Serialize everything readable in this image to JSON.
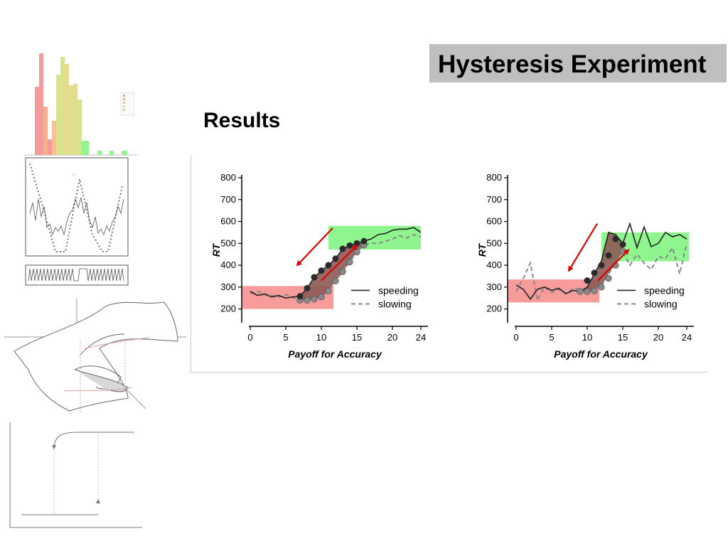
{
  "header": {
    "title": "Hysteresis Experiment",
    "subtitle": "Results"
  },
  "colors": {
    "red_region": "#f79b9b",
    "green_region": "#8ff58f",
    "hysteresis_fill": "#8c5a55",
    "arrow": "#dd0000",
    "speeding": "#222222",
    "slowing": "#888888"
  },
  "chart_data": [
    {
      "type": "line",
      "xlabel": "Payoff for Accuracy",
      "ylabel": "RT",
      "xlim": [
        -1.2,
        25
      ],
      "ylim": [
        150,
        800
      ],
      "x_ticks": [
        0,
        5,
        10,
        15,
        20,
        24
      ],
      "y_ticks": [
        200,
        300,
        400,
        500,
        600,
        700,
        800
      ],
      "legend_position": "lower-right",
      "regions": [
        {
          "color": "red",
          "x_range": [
            -1.2,
            11.7
          ],
          "y_range": [
            200,
            305
          ]
        },
        {
          "color": "green",
          "x_range": [
            11,
            24
          ],
          "y_range": [
            472,
            580
          ]
        }
      ],
      "series": [
        {
          "name": "speeding",
          "x": [
            0,
            1,
            2,
            3,
            4,
            5,
            6,
            7,
            8,
            9,
            10,
            11,
            12,
            13,
            14,
            15,
            16,
            17,
            18,
            19,
            20,
            21,
            22,
            23,
            24
          ],
          "y": [
            280,
            262,
            268,
            255,
            262,
            250,
            255,
            258,
            295,
            345,
            375,
            400,
            430,
            475,
            490,
            500,
            510,
            520,
            540,
            545,
            560,
            565,
            565,
            572,
            550
          ]
        },
        {
          "name": "slowing",
          "x": [
            0,
            1,
            2,
            3,
            4,
            5,
            6,
            7,
            8,
            9,
            10,
            11,
            12,
            13,
            14,
            15,
            16,
            17,
            18,
            19,
            20,
            21,
            22,
            23,
            24
          ],
          "y": [
            272,
            280,
            270,
            262,
            255,
            265,
            252,
            240,
            240,
            245,
            255,
            282,
            328,
            370,
            415,
            460,
            492,
            500,
            500,
            510,
            520,
            535,
            525,
            540,
            530
          ]
        }
      ],
      "annotations": [
        {
          "kind": "arrow",
          "direction": "down-left",
          "meaning": "speeding"
        },
        {
          "kind": "arrow",
          "direction": "up-right",
          "meaning": "slowing"
        }
      ]
    },
    {
      "type": "line",
      "xlabel": "Payoff for Accuracy",
      "ylabel": "RT",
      "xlim": [
        -1.2,
        25
      ],
      "ylim": [
        150,
        800
      ],
      "x_ticks": [
        0,
        5,
        10,
        15,
        20,
        24
      ],
      "y_ticks": [
        200,
        300,
        400,
        500,
        600,
        700,
        800
      ],
      "legend_position": "lower-right",
      "regions": [
        {
          "color": "red",
          "x_range": [
            -1.2,
            11.7
          ],
          "y_range": [
            230,
            335
          ]
        },
        {
          "color": "green",
          "x_range": [
            12,
            24.3
          ],
          "y_range": [
            418,
            550
          ]
        }
      ],
      "series": [
        {
          "name": "speeding",
          "x": [
            0,
            1,
            2,
            3,
            4,
            5,
            6,
            7,
            8,
            9,
            10,
            11,
            12,
            13,
            14,
            15,
            16,
            17,
            18,
            19,
            20,
            21,
            22,
            23,
            24
          ],
          "y": [
            310,
            290,
            245,
            290,
            300,
            285,
            295,
            270,
            285,
            280,
            300,
            360,
            420,
            550,
            540,
            500,
            590,
            480,
            575,
            485,
            500,
            550,
            530,
            540,
            520
          ],
          "markers": {
            "x": [
              10,
              11,
              12,
              13,
              14,
              15
            ],
            "y": [
              330,
              365,
              400,
              445,
              520,
              495
            ]
          }
        },
        {
          "name": "slowing",
          "x": [
            0,
            1,
            2,
            3,
            4,
            5,
            6,
            7,
            8,
            9,
            10,
            11,
            12,
            13,
            14,
            15,
            16,
            17,
            18,
            19,
            20,
            21,
            22,
            23,
            24
          ],
          "y": [
            280,
            340,
            410,
            240,
            300,
            275,
            290,
            270,
            295,
            290,
            275,
            290,
            305,
            360,
            410,
            465,
            400,
            450,
            410,
            380,
            440,
            430,
            480,
            360,
            500
          ],
          "markers": {
            "x": [
              9,
              10,
              11,
              12,
              13,
              14,
              15
            ],
            "y": [
              280,
              280,
              282,
              300,
              340,
              400,
              465
            ]
          }
        }
      ],
      "annotations": [
        {
          "kind": "arrow",
          "direction": "down-left",
          "meaning": "speeding"
        },
        {
          "kind": "arrow",
          "direction": "up-right",
          "meaning": "slowing"
        }
      ]
    }
  ]
}
